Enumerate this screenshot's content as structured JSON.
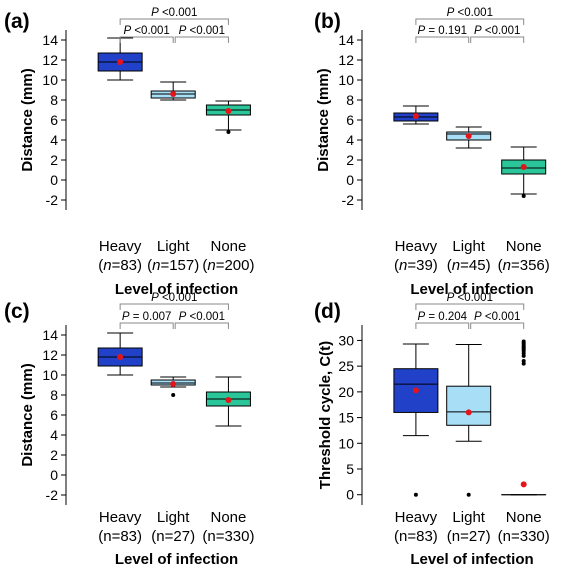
{
  "colors": {
    "heavy": "#2142c8",
    "light": "#a9def7",
    "none": "#2bc59a",
    "mean": "#e5141a",
    "bracket": "#8a8a8a"
  },
  "chart_data": [
    {
      "type": "box",
      "panel_label": "(a)",
      "ylabel": "Distance (mm)",
      "xlabel": "Level of infection",
      "ylim": [
        -3,
        15
      ],
      "yticks": [
        -2,
        0,
        2,
        4,
        6,
        8,
        10,
        12,
        14
      ],
      "categories": [
        {
          "label": "Heavy",
          "n_prefix": "(",
          "n_sym": "n",
          "n_val": "=83)",
          "italic": true,
          "color_key": "heavy",
          "whisker_low": 10.0,
          "q1": 10.9,
          "median": 11.8,
          "q3": 12.7,
          "whisker_high": 14.2,
          "mean": 11.8,
          "outliers": []
        },
        {
          "label": "Light",
          "n_prefix": "(",
          "n_sym": "n",
          "n_val": "=157)",
          "italic": true,
          "color_key": "light",
          "whisker_low": 8.0,
          "q1": 8.2,
          "median": 8.6,
          "q3": 8.9,
          "whisker_high": 9.8,
          "mean": 8.6,
          "outliers": []
        },
        {
          "label": "None",
          "n_prefix": "(",
          "n_sym": "n",
          "n_val": "=200)",
          "italic": true,
          "color_key": "none",
          "whisker_low": 5.0,
          "q1": 6.5,
          "median": 7.0,
          "q3": 7.5,
          "whisker_high": 7.9,
          "mean": 6.9,
          "outliers": [
            4.8
          ]
        }
      ],
      "comparisons": [
        {
          "from": 0,
          "to": 2,
          "p": "P",
          "text": " <0.001",
          "level": "top"
        },
        {
          "from": 0,
          "to": 1,
          "p": "P",
          "text": " <0.001",
          "level": "low"
        },
        {
          "from": 1,
          "to": 2,
          "p": "P",
          "text": " <0.001",
          "level": "low"
        }
      ]
    },
    {
      "type": "box",
      "panel_label": "(b)",
      "ylabel": "Distance (mm)",
      "xlabel": "Level of infection",
      "ylim": [
        -3,
        15
      ],
      "yticks": [
        -2,
        0,
        2,
        4,
        6,
        8,
        10,
        12,
        14
      ],
      "categories": [
        {
          "label": "Heavy",
          "n_prefix": "(",
          "n_sym": "n",
          "n_val": "=39)",
          "italic": true,
          "color_key": "heavy",
          "whisker_low": 5.6,
          "q1": 5.9,
          "median": 6.3,
          "q3": 6.7,
          "whisker_high": 7.4,
          "mean": 6.4,
          "outliers": []
        },
        {
          "label": "Light",
          "n_prefix": "(",
          "n_sym": "n",
          "n_val": "=45)",
          "italic": true,
          "color_key": "light",
          "whisker_low": 3.2,
          "q1": 4.0,
          "median": 4.6,
          "q3": 4.8,
          "whisker_high": 5.3,
          "mean": 4.4,
          "outliers": []
        },
        {
          "label": "None",
          "n_prefix": "(",
          "n_sym": "n",
          "n_val": "=356)",
          "italic": true,
          "color_key": "none",
          "whisker_low": -1.4,
          "q1": 0.6,
          "median": 1.2,
          "q3": 2.0,
          "whisker_high": 3.3,
          "mean": 1.3,
          "outliers": [
            -1.6
          ]
        }
      ],
      "comparisons": [
        {
          "from": 0,
          "to": 2,
          "p": "P",
          "text": " <0.001",
          "level": "top"
        },
        {
          "from": 0,
          "to": 1,
          "p": "P",
          "text": " = 0.191",
          "level": "low"
        },
        {
          "from": 1,
          "to": 2,
          "p": "P",
          "text": " <0.001",
          "level": "low"
        }
      ]
    },
    {
      "type": "box",
      "panel_label": "(c)",
      "ylabel": "Distance (mm)",
      "xlabel": "Level of infection",
      "ylim": [
        -3,
        15
      ],
      "yticks": [
        -2,
        0,
        2,
        4,
        6,
        8,
        10,
        12,
        14
      ],
      "categories": [
        {
          "label": "Heavy",
          "n_prefix": "(n",
          "n_sym": "",
          "n_val": "=83)",
          "italic": false,
          "color_key": "heavy",
          "whisker_low": 10.0,
          "q1": 10.9,
          "median": 11.8,
          "q3": 12.7,
          "whisker_high": 14.2,
          "mean": 11.8,
          "outliers": []
        },
        {
          "label": "Light",
          "n_prefix": "(n",
          "n_sym": "",
          "n_val": "=27)",
          "italic": false,
          "color_key": "light",
          "whisker_low": 8.8,
          "q1": 9.0,
          "median": 9.2,
          "q3": 9.5,
          "whisker_high": 9.8,
          "mean": 9.1,
          "outliers": [
            8.0
          ]
        },
        {
          "label": "None",
          "n_prefix": "(n",
          "n_sym": "",
          "n_val": "=330)",
          "italic": false,
          "color_key": "none",
          "whisker_low": 4.9,
          "q1": 6.9,
          "median": 7.6,
          "q3": 8.3,
          "whisker_high": 9.8,
          "mean": 7.5,
          "outliers": []
        }
      ],
      "comparisons": [
        {
          "from": 0,
          "to": 2,
          "p": "P",
          "text": " <0.001",
          "level": "top"
        },
        {
          "from": 0,
          "to": 1,
          "p": "P",
          "text": " = 0.007",
          "level": "low"
        },
        {
          "from": 1,
          "to": 2,
          "p": "P",
          "text": " <0.001",
          "level": "low"
        }
      ]
    },
    {
      "type": "box",
      "panel_label": "(d)",
      "ylabel": "Threshold cycle, C(t)",
      "xlabel": "Level of infection",
      "ylim": [
        -2,
        33
      ],
      "yticks": [
        0,
        5,
        10,
        15,
        20,
        25,
        30
      ],
      "categories": [
        {
          "label": "Heavy",
          "n_prefix": "(n",
          "n_sym": "",
          "n_val": "=83)",
          "italic": false,
          "color_key": "heavy",
          "whisker_low": 11.5,
          "q1": 16.0,
          "median": 21.5,
          "q3": 24.5,
          "whisker_high": 29.3,
          "mean": 20.3,
          "outliers": [
            0.0
          ]
        },
        {
          "label": "Light",
          "n_prefix": "(n",
          "n_sym": "",
          "n_val": "=27)",
          "italic": false,
          "color_key": "light",
          "whisker_low": 10.4,
          "q1": 13.5,
          "median": 16.1,
          "q3": 21.1,
          "whisker_high": 29.2,
          "mean": 16.0,
          "outliers": [
            0.0
          ]
        },
        {
          "label": "None",
          "n_prefix": "(n",
          "n_sym": "",
          "n_val": "=330)",
          "italic": false,
          "color_key": "none",
          "whisker_low": 0.0,
          "q1": 0.0,
          "median": 0.0,
          "q3": 0.0,
          "whisker_high": 0.0,
          "mean": 2.0,
          "outliers": [
            25.5,
            26.0,
            27.0,
            27.5,
            28.0,
            28.3,
            28.6,
            28.9,
            29.2,
            29.5,
            29.8
          ]
        }
      ],
      "comparisons": [
        {
          "from": 0,
          "to": 2,
          "p": "P",
          "text": " <0.001",
          "level": "top"
        },
        {
          "from": 0,
          "to": 1,
          "p": "P",
          "text": " = 0.204",
          "level": "low"
        },
        {
          "from": 1,
          "to": 2,
          "p": "P",
          "text": " <0.001",
          "level": "low"
        }
      ]
    }
  ]
}
